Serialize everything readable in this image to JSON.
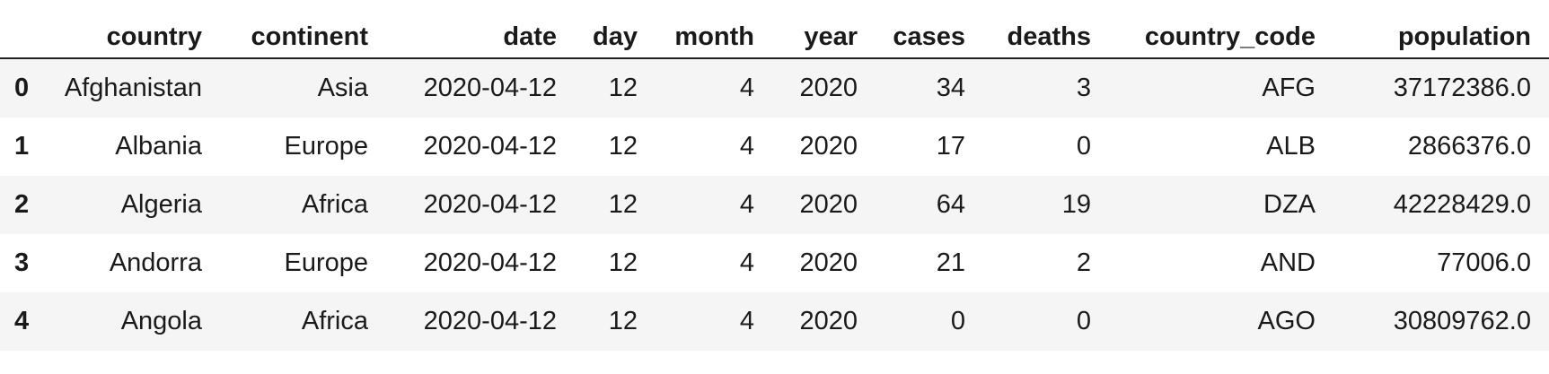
{
  "table": {
    "columns": [
      "",
      "country",
      "continent",
      "date",
      "day",
      "month",
      "year",
      "cases",
      "deaths",
      "country_code",
      "population"
    ],
    "rows": [
      {
        "index": "0",
        "cells": [
          "Afghanistan",
          "Asia",
          "2020-04-12",
          "12",
          "4",
          "2020",
          "34",
          "3",
          "AFG",
          "37172386.0"
        ]
      },
      {
        "index": "1",
        "cells": [
          "Albania",
          "Europe",
          "2020-04-12",
          "12",
          "4",
          "2020",
          "17",
          "0",
          "ALB",
          "2866376.0"
        ]
      },
      {
        "index": "2",
        "cells": [
          "Algeria",
          "Africa",
          "2020-04-12",
          "12",
          "4",
          "2020",
          "64",
          "19",
          "DZA",
          "42228429.0"
        ]
      },
      {
        "index": "3",
        "cells": [
          "Andorra",
          "Europe",
          "2020-04-12",
          "12",
          "4",
          "2020",
          "21",
          "2",
          "AND",
          "77006.0"
        ]
      },
      {
        "index": "4",
        "cells": [
          "Angola",
          "Africa",
          "2020-04-12",
          "12",
          "4",
          "2020",
          "0",
          "0",
          "AGO",
          "30809762.0"
        ]
      }
    ]
  },
  "colors": {
    "row_stripe": "#f5f5f5",
    "row_plain": "#ffffff",
    "header_rule": "#222222"
  }
}
